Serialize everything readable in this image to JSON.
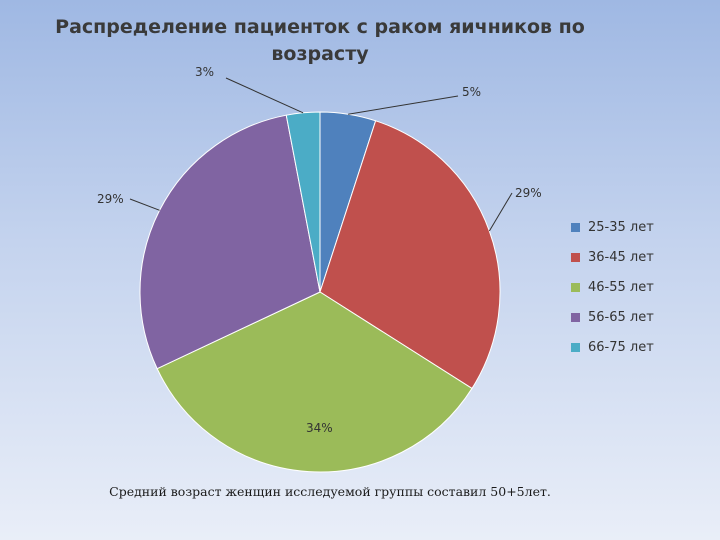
{
  "title": "Распределение пациенток с раком яичников по возрасту",
  "footnote": "Средний возраст женщин исследуемой группы составил 50+5лет.",
  "chart_data": {
    "type": "pie",
    "title": "Распределение пациенток с раком яичников по возрасту",
    "categories": [
      "25-35 лет",
      "36-45 лет",
      "46-55 лет",
      "56-65 лет",
      "66-75 лет"
    ],
    "values": [
      5,
      29,
      34,
      29,
      3
    ],
    "labels": [
      "5%",
      "29%",
      "34%",
      "29%",
      "3%"
    ],
    "colors": [
      "#4f81bd",
      "#c0504d",
      "#9bbb59",
      "#8064a2",
      "#4bacc6"
    ],
    "legend_position": "right"
  }
}
